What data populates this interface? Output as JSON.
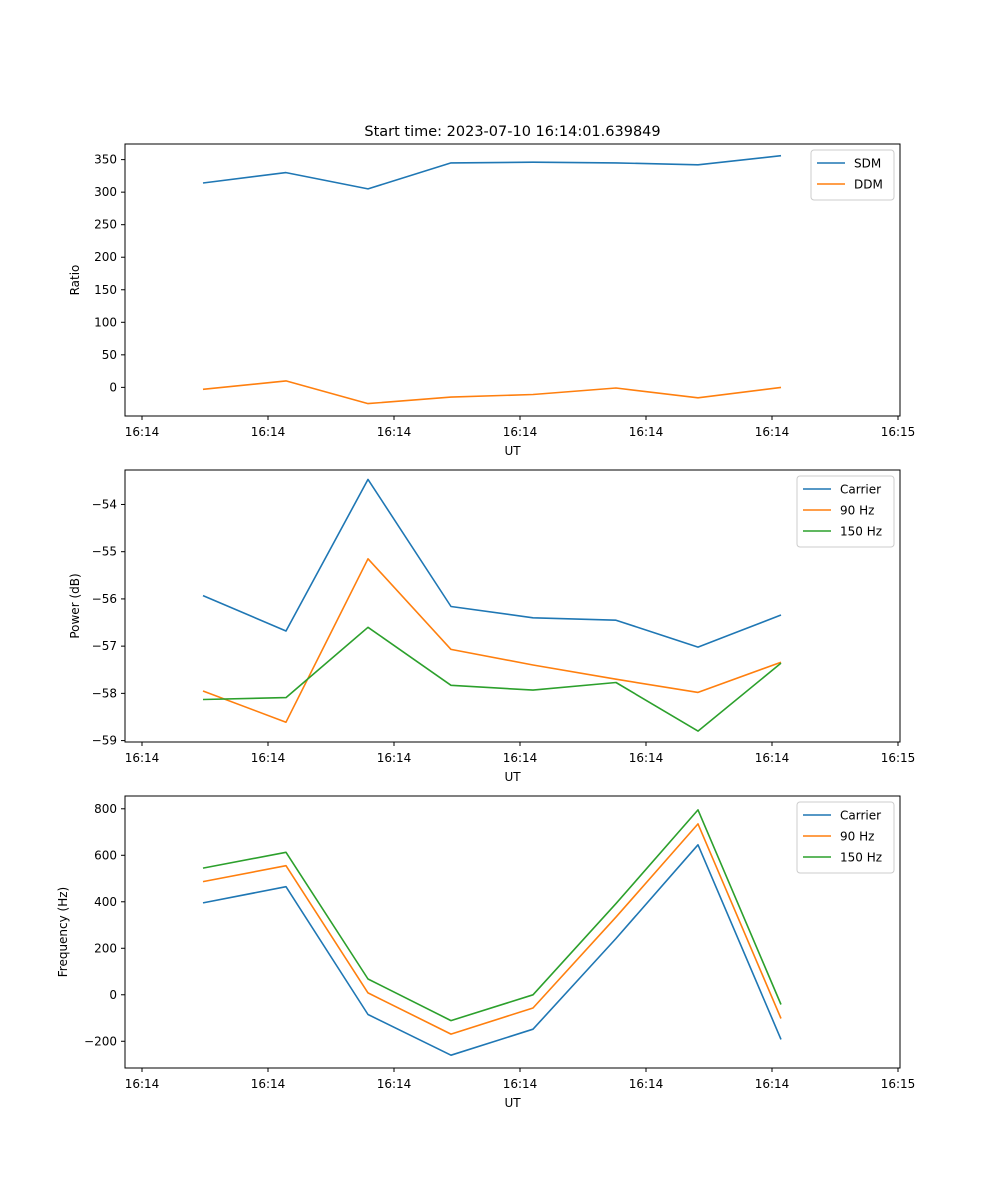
{
  "title": "Start time: 2023-07-10 16:14:01.639849",
  "chart_data": [
    {
      "type": "line",
      "xlabel": "UT",
      "ylabel": "Ratio",
      "x_ticks": [
        "16:14",
        "16:14",
        "16:14",
        "16:14",
        "16:14",
        "16:14",
        "16:15"
      ],
      "yticks": [
        0,
        50,
        100,
        150,
        200,
        250,
        300,
        350
      ],
      "ylim": [
        -44,
        374
      ],
      "legend": "top-right",
      "series": [
        {
          "name": "SDM",
          "color": "#1f77b4",
          "values": [
            314,
            330,
            305,
            345,
            346,
            345,
            342,
            356
          ]
        },
        {
          "name": "DDM",
          "color": "#ff7f0e",
          "values": [
            -3,
            10,
            -25,
            -15,
            -11,
            -1,
            -16,
            0
          ]
        }
      ]
    },
    {
      "type": "line",
      "xlabel": "UT",
      "ylabel": "Power (dB)",
      "x_ticks": [
        "16:14",
        "16:14",
        "16:14",
        "16:14",
        "16:14",
        "16:14",
        "16:15"
      ],
      "yticks": [
        -54,
        -55,
        -56,
        -57,
        -58,
        -59
      ],
      "ylim": [
        -59.03,
        -53.27
      ],
      "legend": "top-right",
      "series": [
        {
          "name": "Carrier",
          "color": "#1f77b4",
          "values": [
            -55.93,
            -56.68,
            -53.47,
            -56.16,
            -56.4,
            -56.45,
            -57.02,
            -56.34
          ]
        },
        {
          "name": "90 Hz",
          "color": "#ff7f0e",
          "values": [
            -57.95,
            -58.61,
            -55.15,
            -57.07,
            -57.4,
            -57.7,
            -57.98,
            -57.34
          ]
        },
        {
          "name": "150 Hz",
          "color": "#2ca02c",
          "values": [
            -58.13,
            -58.09,
            -56.6,
            -57.83,
            -57.93,
            -57.77,
            -58.8,
            -57.36
          ]
        }
      ]
    },
    {
      "type": "line",
      "xlabel": "UT",
      "ylabel": "Frequency (Hz)",
      "x_ticks": [
        "16:14",
        "16:14",
        "16:14",
        "16:14",
        "16:14",
        "16:14",
        "16:15"
      ],
      "yticks": [
        -200,
        0,
        200,
        400,
        600,
        800
      ],
      "ylim": [
        -315,
        855
      ],
      "legend": "top-right",
      "series": [
        {
          "name": "Carrier",
          "color": "#1f77b4",
          "values": [
            395,
            465,
            -85,
            -260,
            -148,
            242,
            645,
            -192
          ]
        },
        {
          "name": "90 Hz",
          "color": "#ff7f0e",
          "values": [
            487,
            555,
            8,
            -169,
            -57,
            334,
            735,
            -102
          ]
        },
        {
          "name": "150 Hz",
          "color": "#2ca02c",
          "values": [
            545,
            613,
            68,
            -111,
            0,
            392,
            795,
            -42
          ]
        }
      ]
    }
  ]
}
